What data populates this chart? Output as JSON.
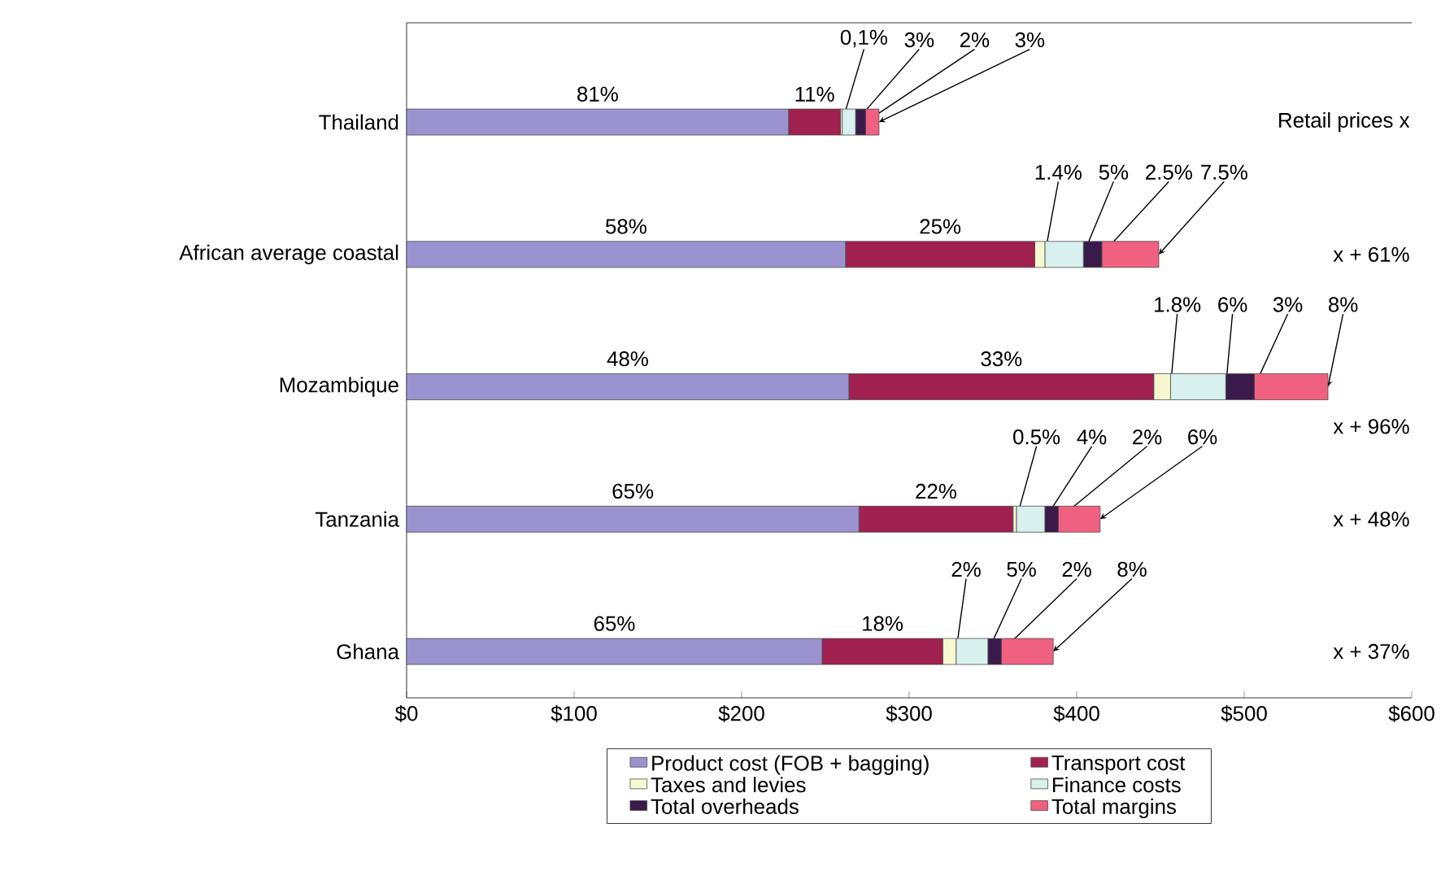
{
  "chart_data": {
    "type": "bar",
    "orientation": "horizontal",
    "stacked": true,
    "categories": [
      "Thailand",
      "African average coastal",
      "Mozambique",
      "Tanzania",
      "Ghana"
    ],
    "series": [
      {
        "name": "Product cost (FOB + bagging)",
        "color": "#9b93d0",
        "values": [
          228,
          262,
          264,
          270,
          248
        ]
      },
      {
        "name": "Transport  cost",
        "color": "#a0204f",
        "values": [
          31,
          113,
          182,
          92,
          72
        ]
      },
      {
        "name": "Taxes and levies",
        "color": "#f8f8d0",
        "values": [
          1,
          6,
          10,
          2,
          8
        ]
      },
      {
        "name": "Finance costs",
        "color": "#d8f0ee",
        "values": [
          8,
          23,
          33,
          17,
          19
        ]
      },
      {
        "name": "Total overheads",
        "color": "#3a1a4a",
        "values": [
          6,
          11,
          17,
          8,
          8
        ]
      },
      {
        "name": "Total margins",
        "color": "#f06080",
        "values": [
          8,
          34,
          44,
          25,
          31
        ]
      }
    ],
    "xlim": [
      0,
      600
    ],
    "xticks": [
      {
        "value": 0,
        "label": "$0"
      },
      {
        "value": 100,
        "label": "$100"
      },
      {
        "value": 200,
        "label": "$200"
      },
      {
        "value": 300,
        "label": "$300"
      },
      {
        "value": 400,
        "label": "$400"
      },
      {
        "value": 500,
        "label": "$500"
      },
      {
        "value": 600,
        "label": "$600"
      }
    ],
    "annotations": [
      "81%",
      "11%",
      {
        "text": "0,1%",
        "x": 260,
        "y": "Thailand"
      },
      {
        "text": "3%",
        "x": 268,
        "y": "Thailand"
      },
      {
        "text": "2%",
        "x": 274,
        "y": "Thailand"
      },
      {
        "text": "3%",
        "x": 282,
        "y": "Thailand"
      },
      "58%",
      "25%",
      {
        "text": "1.4%",
        "x": 381,
        "y": "African average coastal"
      },
      {
        "text": "5%",
        "x": 404,
        "y": "African average coastal"
      },
      {
        "text": "2.5%",
        "x": 415,
        "y": "African average coastal"
      },
      {
        "text": "7.5%",
        "x": 449,
        "y": "African average coastal"
      },
      "48%",
      "33%",
      {
        "text": "1.8%",
        "x": 456,
        "y": "Mozambique"
      },
      {
        "text": "6%",
        "x": 489,
        "y": "Mozambique"
      },
      {
        "text": "3%",
        "x": 506,
        "y": "Mozambique"
      },
      {
        "text": "8%",
        "x": 550,
        "y": "Mozambique"
      },
      "65%",
      "22%",
      {
        "text": "0.5%",
        "x": 364,
        "y": "Tanzania"
      },
      {
        "text": "4%",
        "x": 381,
        "y": "Tanzania"
      },
      {
        "text": "2%",
        "x": 389,
        "y": "Tanzania"
      },
      {
        "text": "6%",
        "x": 414,
        "y": "Tanzania"
      },
      "65%",
      "18%",
      {
        "text": "2%",
        "x": 328,
        "y": "Ghana"
      },
      {
        "text": "5%",
        "x": 347,
        "y": "Ghana"
      },
      {
        "text": "2%",
        "x": 355,
        "y": "Ghana"
      },
      {
        "text": "8%",
        "x": 386,
        "y": "Ghana"
      },
      "Retail prices x",
      "x + 61%",
      "x + 96%",
      "x + 48%",
      "x + 37%"
    ],
    "legend": "bottom"
  }
}
